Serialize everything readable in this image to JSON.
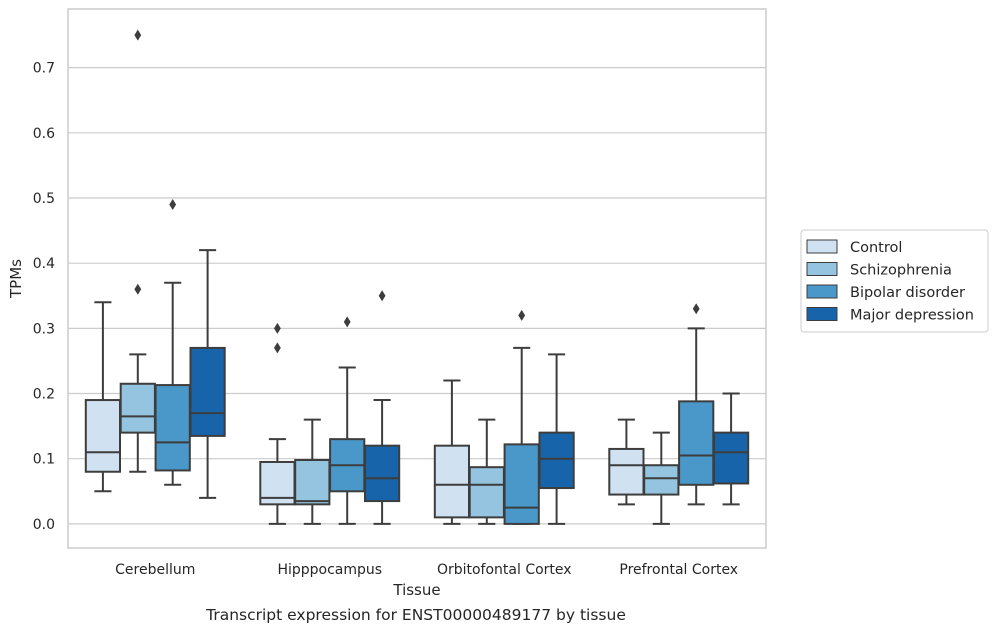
{
  "caption": "Transcript expression for ENST00000489177 by tissue",
  "chart_data": {
    "type": "box",
    "xlabel": "Tissue",
    "ylabel": "TPMs",
    "ylim": [
      -0.037,
      0.79
    ],
    "yticks": [
      0.0,
      0.1,
      0.2,
      0.3,
      0.4,
      0.5,
      0.6,
      0.7
    ],
    "ytick_labels": [
      "0.0",
      "0.1",
      "0.2",
      "0.3",
      "0.4",
      "0.5",
      "0.6",
      "0.7"
    ],
    "grid": "horizontal",
    "legend_position": "right",
    "categories": [
      "Cerebellum",
      "Hipppocampus",
      "Orbitofontal Cortex",
      "Prefrontal Cortex"
    ],
    "series": [
      {
        "name": "Control",
        "color": "#d0e1f2",
        "boxes": [
          {
            "q1": 0.08,
            "median": 0.11,
            "q3": 0.19,
            "whislo": 0.05,
            "whishi": 0.34,
            "fliers": []
          },
          {
            "q1": 0.03,
            "median": 0.04,
            "q3": 0.095,
            "whislo": 0.0,
            "whishi": 0.13,
            "fliers": [
              0.27,
              0.3
            ]
          },
          {
            "q1": 0.01,
            "median": 0.06,
            "q3": 0.12,
            "whislo": 0.0,
            "whishi": 0.22,
            "fliers": []
          },
          {
            "q1": 0.045,
            "median": 0.09,
            "q3": 0.115,
            "whislo": 0.03,
            "whishi": 0.16,
            "fliers": []
          }
        ]
      },
      {
        "name": "Schizophrenia",
        "color": "#94c4df",
        "boxes": [
          {
            "q1": 0.14,
            "median": 0.165,
            "q3": 0.215,
            "whislo": 0.08,
            "whishi": 0.26,
            "fliers": [
              0.36,
              0.75
            ]
          },
          {
            "q1": 0.03,
            "median": 0.035,
            "q3": 0.098,
            "whislo": 0.0,
            "whishi": 0.16,
            "fliers": []
          },
          {
            "q1": 0.01,
            "median": 0.06,
            "q3": 0.087,
            "whislo": 0.0,
            "whishi": 0.16,
            "fliers": []
          },
          {
            "q1": 0.045,
            "median": 0.07,
            "q3": 0.09,
            "whislo": 0.0,
            "whishi": 0.14,
            "fliers": []
          }
        ]
      },
      {
        "name": "Bipolar disorder",
        "color": "#4a98c9",
        "boxes": [
          {
            "q1": 0.082,
            "median": 0.125,
            "q3": 0.213,
            "whislo": 0.06,
            "whishi": 0.37,
            "fliers": [
              0.49
            ]
          },
          {
            "q1": 0.05,
            "median": 0.09,
            "q3": 0.13,
            "whislo": 0.0,
            "whishi": 0.24,
            "fliers": [
              0.31
            ]
          },
          {
            "q1": 0.0,
            "median": 0.025,
            "q3": 0.122,
            "whislo": 0.0,
            "whishi": 0.27,
            "fliers": [
              0.32
            ]
          },
          {
            "q1": 0.06,
            "median": 0.105,
            "q3": 0.188,
            "whislo": 0.03,
            "whishi": 0.3,
            "fliers": [
              0.33
            ]
          }
        ]
      },
      {
        "name": "Major depression",
        "color": "#1764ab",
        "boxes": [
          {
            "q1": 0.135,
            "median": 0.17,
            "q3": 0.27,
            "whislo": 0.04,
            "whishi": 0.42,
            "fliers": []
          },
          {
            "q1": 0.035,
            "median": 0.07,
            "q3": 0.12,
            "whislo": 0.0,
            "whishi": 0.19,
            "fliers": [
              0.35
            ]
          },
          {
            "q1": 0.055,
            "median": 0.1,
            "q3": 0.14,
            "whislo": 0.0,
            "whishi": 0.26,
            "fliers": []
          },
          {
            "q1": 0.062,
            "median": 0.11,
            "q3": 0.14,
            "whislo": 0.03,
            "whishi": 0.2,
            "fliers": []
          }
        ]
      }
    ]
  }
}
